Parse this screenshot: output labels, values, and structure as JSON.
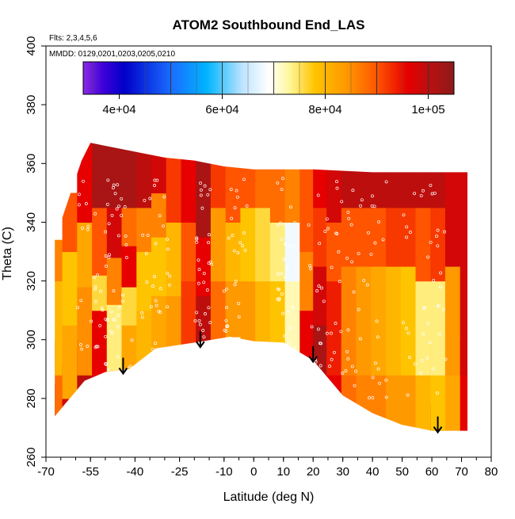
{
  "chart_data": {
    "type": "heatmap",
    "title": "ATOM2 Southbound End_LAS",
    "subtitle_flights": "Flts: 2,3,4,5,6",
    "subtitle_dates": "MMDD: 0129,0201,0203,0205,0210",
    "xlabel": "Latitude (deg N)",
    "ylabel": "Theta (C)",
    "xlim": [
      -70,
      80
    ],
    "ylim": [
      260,
      400
    ],
    "x_ticks": [
      {
        "value": -70,
        "label": "-70"
      },
      {
        "value": -55,
        "label": "-55"
      },
      {
        "value": -40,
        "label": "-40"
      },
      {
        "value": -25,
        "label": "-25"
      },
      {
        "value": -10,
        "label": "-10"
      },
      {
        "value": 0,
        "label": "0"
      },
      {
        "value": 10,
        "label": "10"
      },
      {
        "value": 20,
        "label": "20"
      },
      {
        "value": 30,
        "label": "30"
      },
      {
        "value": 40,
        "label": "40"
      },
      {
        "value": 50,
        "label": "50"
      },
      {
        "value": 60,
        "label": "60"
      },
      {
        "value": 70,
        "label": "70"
      },
      {
        "value": 80,
        "label": "80"
      }
    ],
    "y_ticks": [
      {
        "value": 260,
        "label": "260"
      },
      {
        "value": 280,
        "label": "280"
      },
      {
        "value": 300,
        "label": "300"
      },
      {
        "value": 320,
        "label": "320"
      },
      {
        "value": 340,
        "label": "340"
      },
      {
        "value": 360,
        "label": "360"
      },
      {
        "value": 380,
        "label": "380"
      },
      {
        "value": 400,
        "label": "400"
      }
    ],
    "colorbar": {
      "range": [
        33000,
        105000
      ],
      "ticks": [
        {
          "value": 40000,
          "label": "4e+04"
        },
        {
          "value": 60000,
          "label": "6e+04"
        },
        {
          "value": 80000,
          "label": "8e+04"
        },
        {
          "value": 100000,
          "label": "1e+05"
        }
      ],
      "stops": [
        {
          "value": 33000,
          "color": "#8b2be2"
        },
        {
          "value": 37000,
          "color": "#3c00d9"
        },
        {
          "value": 41000,
          "color": "#0000c8"
        },
        {
          "value": 50000,
          "color": "#1a6cff"
        },
        {
          "value": 57000,
          "color": "#00b4ff"
        },
        {
          "value": 64000,
          "color": "#bfe4ff"
        },
        {
          "value": 69000,
          "color": "#ffffff"
        },
        {
          "value": 73000,
          "color": "#fff79c"
        },
        {
          "value": 78000,
          "color": "#ffc400"
        },
        {
          "value": 84000,
          "color": "#ff9900"
        },
        {
          "value": 90000,
          "color": "#ff5500"
        },
        {
          "value": 96000,
          "color": "#e60000"
        },
        {
          "value": 101000,
          "color": "#b31212"
        },
        {
          "value": 105000,
          "color": "#8b1a1a"
        }
      ],
      "dividers": [
        50000,
        60000,
        70000,
        80000,
        90000,
        100000
      ]
    },
    "domain_lower_boundary": [
      [
        -67,
        274
      ],
      [
        -57,
        286
      ],
      [
        -50,
        289
      ],
      [
        -42,
        290
      ],
      [
        -33,
        297
      ],
      [
        -20,
        299
      ],
      [
        -8,
        301
      ],
      [
        0,
        299.5
      ],
      [
        10,
        299
      ],
      [
        20,
        293
      ],
      [
        30,
        281
      ],
      [
        40,
        275
      ],
      [
        50,
        271
      ],
      [
        60,
        269
      ],
      [
        72,
        269
      ]
    ],
    "domain_upper_boundary": [
      [
        -67,
        334
      ],
      [
        -64,
        343
      ],
      [
        -61,
        352
      ],
      [
        -58,
        361
      ],
      [
        -55,
        367
      ],
      [
        -45,
        365
      ],
      [
        -30,
        362
      ],
      [
        -20,
        361
      ],
      [
        -10,
        359
      ],
      [
        0,
        358
      ],
      [
        20,
        358
      ],
      [
        40,
        357
      ],
      [
        50,
        357
      ],
      [
        72,
        357
      ]
    ],
    "field_columns": [
      {
        "lat": -67,
        "bands": [
          [
            274,
            285,
            96000
          ],
          [
            285,
            300,
            88000
          ],
          [
            300,
            320,
            80000
          ],
          [
            320,
            334,
            86000
          ]
        ]
      },
      {
        "lat": -62,
        "bands": [
          [
            277,
            292,
            98000
          ],
          [
            292,
            305,
            82000
          ],
          [
            305,
            330,
            78000
          ],
          [
            330,
            350,
            90000
          ]
        ]
      },
      {
        "lat": -57,
        "bands": [
          [
            286,
            300,
            100000
          ],
          [
            300,
            318,
            85000
          ],
          [
            318,
            340,
            82000
          ],
          [
            340,
            360,
            96000
          ]
        ]
      },
      {
        "lat": -52,
        "bands": [
          [
            288,
            310,
            96000
          ],
          [
            310,
            322,
            76000
          ],
          [
            322,
            345,
            90000
          ],
          [
            345,
            366,
            102000
          ]
        ]
      },
      {
        "lat": -47,
        "bands": [
          [
            289,
            300,
            90000
          ],
          [
            300,
            312,
            74000
          ],
          [
            312,
            328,
            86000
          ],
          [
            328,
            345,
            98000
          ],
          [
            345,
            365,
            102000
          ]
        ]
      },
      {
        "lat": -42,
        "bands": [
          [
            290,
            305,
            82000
          ],
          [
            305,
            318,
            76000
          ],
          [
            318,
            332,
            96000
          ],
          [
            332,
            345,
            88000
          ],
          [
            345,
            364,
            102000
          ]
        ]
      },
      {
        "lat": -37,
        "bands": [
          [
            293,
            310,
            80000
          ],
          [
            310,
            330,
            78000
          ],
          [
            330,
            345,
            86000
          ],
          [
            345,
            363,
            100000
          ]
        ]
      },
      {
        "lat": -32,
        "bands": [
          [
            297,
            315,
            82000
          ],
          [
            315,
            335,
            78000
          ],
          [
            335,
            350,
            86000
          ],
          [
            350,
            362,
            98000
          ]
        ]
      },
      {
        "lat": -27,
        "bands": [
          [
            298,
            315,
            84000
          ],
          [
            315,
            340,
            80000
          ],
          [
            340,
            361,
            92000
          ]
        ]
      },
      {
        "lat": -22,
        "bands": [
          [
            299,
            320,
            92000
          ],
          [
            320,
            340,
            90000
          ],
          [
            340,
            361,
            96000
          ]
        ]
      },
      {
        "lat": -17,
        "bands": [
          [
            299,
            315,
            100000
          ],
          [
            315,
            335,
            96000
          ],
          [
            335,
            360,
            102000
          ]
        ]
      },
      {
        "lat": -12,
        "bands": [
          [
            300,
            320,
            88000
          ],
          [
            320,
            345,
            84000
          ],
          [
            345,
            359,
            92000
          ]
        ]
      },
      {
        "lat": -7,
        "bands": [
          [
            301,
            320,
            84000
          ],
          [
            320,
            340,
            80000
          ],
          [
            340,
            358,
            90000
          ]
        ]
      },
      {
        "lat": -2,
        "bands": [
          [
            300,
            320,
            84000
          ],
          [
            320,
            345,
            78000
          ],
          [
            345,
            358,
            90000
          ]
        ]
      },
      {
        "lat": 3,
        "bands": [
          [
            299.5,
            320,
            80000
          ],
          [
            320,
            345,
            76000
          ],
          [
            345,
            358,
            88000
          ]
        ]
      },
      {
        "lat": 8,
        "bands": [
          [
            299,
            320,
            78000
          ],
          [
            320,
            340,
            74000
          ],
          [
            340,
            358,
            88000
          ]
        ]
      },
      {
        "lat": 13,
        "bands": [
          [
            298,
            320,
            72000
          ],
          [
            320,
            340,
            68000
          ],
          [
            340,
            358,
            86000
          ]
        ]
      },
      {
        "lat": 18,
        "bands": [
          [
            294,
            310,
            96000
          ],
          [
            310,
            330,
            86000
          ],
          [
            330,
            358,
            90000
          ]
        ]
      },
      {
        "lat": 22,
        "bands": [
          [
            292,
            305,
            102000
          ],
          [
            305,
            325,
            98000
          ],
          [
            325,
            345,
            92000
          ],
          [
            345,
            358,
            96000
          ]
        ]
      },
      {
        "lat": 27,
        "bands": [
          [
            286,
            300,
            96000
          ],
          [
            300,
            320,
            94000
          ],
          [
            320,
            340,
            90000
          ],
          [
            340,
            358,
            98000
          ]
        ]
      },
      {
        "lat": 32,
        "bands": [
          [
            281,
            300,
            88000
          ],
          [
            300,
            325,
            86000
          ],
          [
            325,
            345,
            90000
          ],
          [
            345,
            358,
            100000
          ]
        ]
      },
      {
        "lat": 37,
        "bands": [
          [
            278,
            300,
            86000
          ],
          [
            300,
            325,
            84000
          ],
          [
            325,
            345,
            90000
          ],
          [
            345,
            357,
            100000
          ]
        ]
      },
      {
        "lat": 42,
        "bands": [
          [
            275,
            300,
            86000
          ],
          [
            300,
            325,
            82000
          ],
          [
            325,
            345,
            90000
          ],
          [
            345,
            357,
            100000
          ]
        ]
      },
      {
        "lat": 47,
        "bands": [
          [
            273,
            300,
            84000
          ],
          [
            300,
            325,
            80000
          ],
          [
            325,
            345,
            92000
          ],
          [
            345,
            357,
            100000
          ]
        ]
      },
      {
        "lat": 52,
        "bands": [
          [
            271,
            300,
            84000
          ],
          [
            300,
            325,
            78000
          ],
          [
            325,
            345,
            92000
          ],
          [
            345,
            357,
            100000
          ]
        ]
      },
      {
        "lat": 57,
        "bands": [
          [
            270,
            300,
            80000
          ],
          [
            300,
            320,
            74000
          ],
          [
            320,
            345,
            90000
          ],
          [
            345,
            357,
            100000
          ]
        ]
      },
      {
        "lat": 62,
        "bands": [
          [
            269,
            278,
            104000
          ],
          [
            278,
            300,
            78000
          ],
          [
            300,
            320,
            74000
          ],
          [
            320,
            345,
            92000
          ],
          [
            345,
            357,
            100000
          ]
        ]
      },
      {
        "lat": 67,
        "bands": [
          [
            269,
            300,
            82000
          ],
          [
            300,
            325,
            84000
          ],
          [
            325,
            357,
            98000
          ]
        ]
      },
      {
        "lat": 72,
        "bands": [
          [
            269,
            300,
            96000
          ],
          [
            300,
            357,
            98000
          ]
        ]
      }
    ],
    "markers": [
      {
        "lat": -44,
        "theta": 289
      },
      {
        "lat": -18,
        "theta": 298
      },
      {
        "lat": 20,
        "theta": 293
      },
      {
        "lat": 62,
        "theta": 269
      }
    ],
    "sample_points_note": "white open circles mark measurement locations"
  }
}
